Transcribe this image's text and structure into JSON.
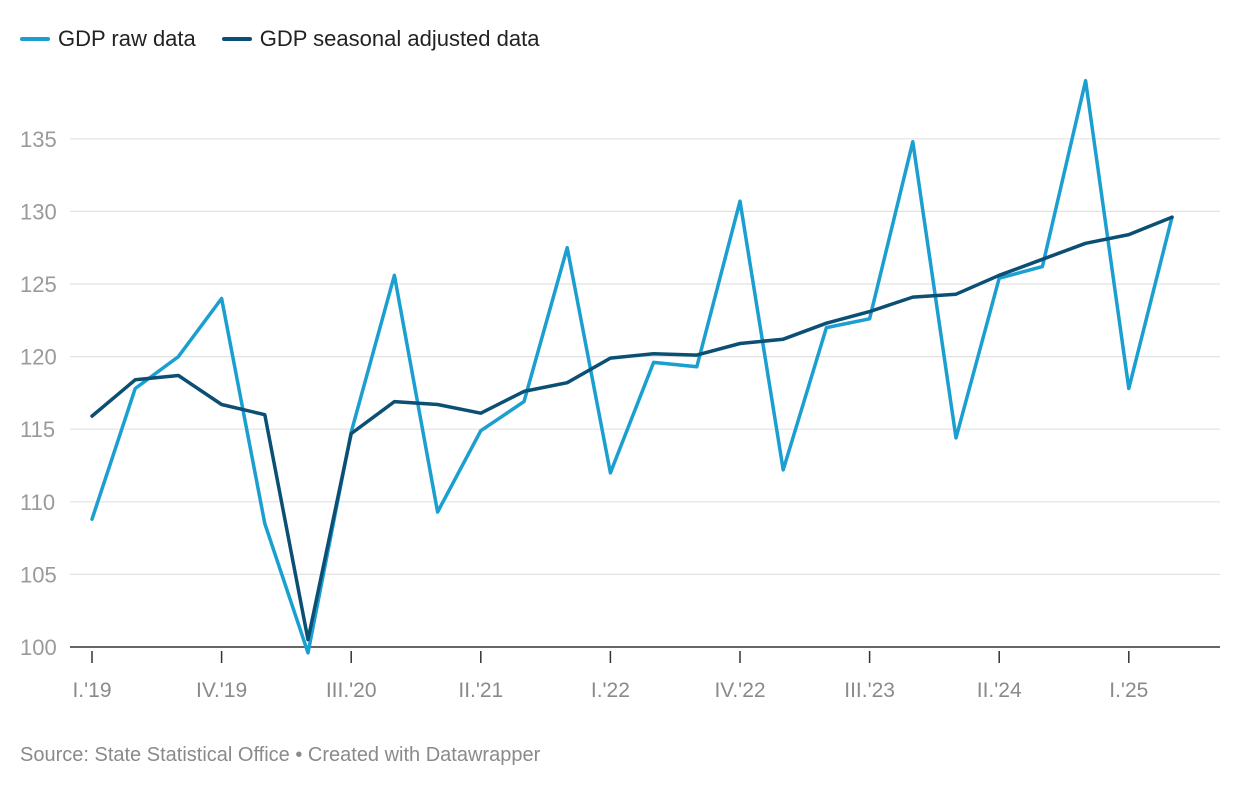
{
  "legend": [
    {
      "label": "GDP raw data",
      "color": "#1a9fd0"
    },
    {
      "label": "GDP seasonal adjusted data",
      "color": "#0b4f75"
    }
  ],
  "footer": {
    "source": "Source: State Statistical Office",
    "separator": "•",
    "credit": "Created with Datawrapper"
  },
  "chart_data": {
    "type": "line",
    "x": [
      "I.'19",
      "II.'19",
      "III.'19",
      "IV.'19",
      "I.'20",
      "II.'20",
      "III.'20",
      "IV.'20",
      "I.'21",
      "II.'21",
      "III.'21",
      "IV.'21",
      "I.'22",
      "II.'22",
      "III.'22",
      "IV.'22",
      "I.'23",
      "II.'23",
      "III.'23",
      "IV.'23",
      "I.'24",
      "II.'24",
      "III.'24",
      "IV.'24",
      "I.'25",
      "II.'25"
    ],
    "tick_labels": [
      "I.'19",
      "IV.'19",
      "III.'20",
      "II.'21",
      "I.'22",
      "IV.'22",
      "III.'23",
      "II.'24",
      "I.'25"
    ],
    "tick_indices": [
      0,
      3,
      6,
      9,
      12,
      15,
      18,
      21,
      24
    ],
    "yticks": [
      100,
      105,
      110,
      115,
      120,
      125,
      130,
      135
    ],
    "ylim": [
      100,
      139
    ],
    "grid": true,
    "legend_position": "top-left",
    "series": [
      {
        "name": "GDP raw data",
        "color": "#1a9fd0",
        "values": [
          108.8,
          117.8,
          120.0,
          124.0,
          108.5,
          99.6,
          114.8,
          125.6,
          109.3,
          114.9,
          116.9,
          127.5,
          112.0,
          119.6,
          119.3,
          130.7,
          112.2,
          122.0,
          122.6,
          134.8,
          114.4,
          125.4,
          126.2,
          139.0,
          117.8,
          129.6
        ]
      },
      {
        "name": "GDP seasonal adjusted data",
        "color": "#0b4f75",
        "values": [
          115.9,
          118.4,
          118.7,
          116.7,
          116.0,
          100.5,
          114.7,
          116.9,
          116.7,
          116.1,
          117.6,
          118.2,
          119.9,
          120.2,
          120.1,
          120.9,
          121.2,
          122.3,
          123.1,
          124.1,
          124.3,
          125.6,
          126.7,
          127.8,
          128.4,
          129.6
        ]
      }
    ]
  }
}
